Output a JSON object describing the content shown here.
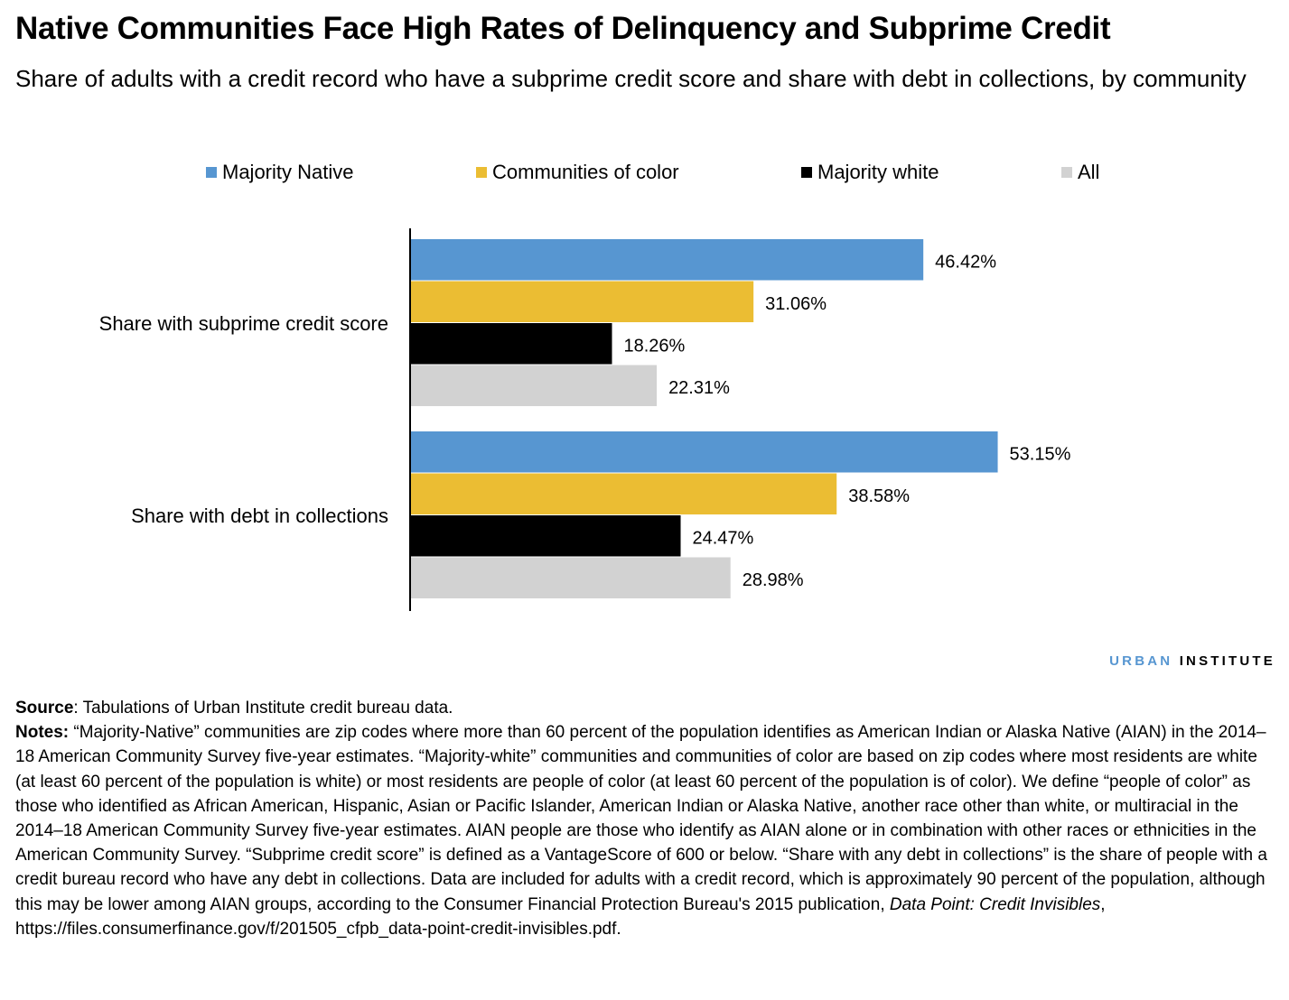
{
  "title": "Native Communities Face High Rates of Delinquency and Subprime Credit",
  "subtitle": "Share of adults with a credit record who have a subprime credit score and share with debt in collections, by community",
  "chart_data": {
    "type": "bar",
    "orientation": "horizontal",
    "categories": [
      "Share with subprime credit score",
      "Share with debt in collections"
    ],
    "series": [
      {
        "name": "Majority Native",
        "color": "#5796d1",
        "values": [
          46.42,
          53.15
        ],
        "labels": [
          "46.42%",
          "53.15%"
        ]
      },
      {
        "name": "Communities of color",
        "color": "#ebbd33",
        "values": [
          31.06,
          38.58
        ],
        "labels": [
          "31.06%",
          "38.58%"
        ]
      },
      {
        "name": "Majority white",
        "color": "#000000",
        "values": [
          18.26,
          24.47
        ],
        "labels": [
          "18.26%",
          "24.47%"
        ]
      },
      {
        "name": "All",
        "color": "#d2d2d2",
        "values": [
          22.31,
          28.98
        ],
        "labels": [
          "22.31%",
          "28.98%"
        ]
      }
    ],
    "legend_position": "top",
    "grid": false,
    "xlim": [
      0,
      60
    ]
  },
  "logo": {
    "part1": "URBAN",
    "part2": "INSTITUTE"
  },
  "source": {
    "label": "Source",
    "text": ": Tabulations of Urban Institute credit bureau data."
  },
  "notes": {
    "label": "Notes:",
    "text1": " “Majority-Native” communities are zip codes where more than 60 percent of the population identifies as American Indian or Alaska Native (AIAN) in the 2014–18 American Community Survey five-year estimates. “Majority-white” communities and communities of color are based on zip codes where most residents are white (at least 60 percent of the population is white) or most residents are people of color (at least 60 percent of the population is of color). We define “people of color” as those who identified as African American, Hispanic, Asian or Pacific Islander, American Indian or Alaska Native, another race other than white, or multiracial in the 2014–18 American Community Survey five-year estimates. AIAN people are those who identify as AIAN alone or in combination with other races or ethnicities in the American Community Survey. “Subprime credit score” is defined as a VantageScore of 600 or below. “Share with any debt in collections” is the share of people with a credit bureau record who have any debt in collections. Data are included for adults with a credit record, which is approximately 90 percent of the population, although this may be lower among AIAN groups, according to the Consumer Financial Protection Bureau's 2015 publication, ",
    "italic": "Data Point: Credit Invisibles",
    "text2": ", https://files.consumerfinance.gov/f/201505_cfpb_data-point-credit-invisibles.pdf."
  }
}
